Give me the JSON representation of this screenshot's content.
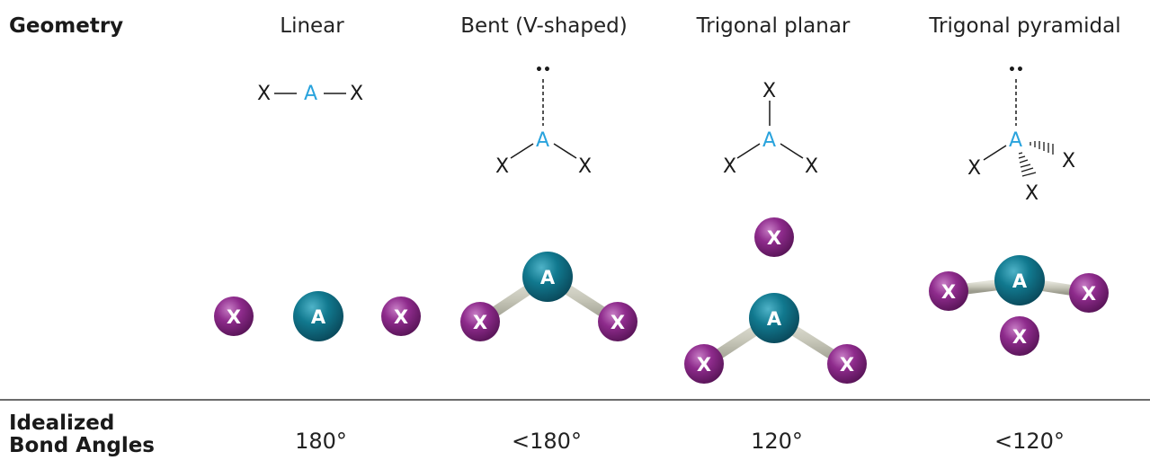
{
  "header": {
    "geometry_label": "Geometry"
  },
  "footer": {
    "angles_label_line1": "Idealized",
    "angles_label_line2": "Bond Angles"
  },
  "columns": [
    {
      "title": "Linear",
      "angle": "180°"
    },
    {
      "title": "Bent (V-shaped)",
      "angle": "<180°"
    },
    {
      "title": "Trigonal planar",
      "angle": "120°"
    },
    {
      "title": "Trigonal pyramidal",
      "angle": "<120°"
    }
  ],
  "symbols": {
    "central": "A",
    "outer": "X",
    "lone_pair": "••"
  },
  "colors": {
    "central_label": "#29a3dd",
    "central_atom": "#0e6f86",
    "outer_atom": "#8e2b8c",
    "bond": "#c9c9bd"
  }
}
